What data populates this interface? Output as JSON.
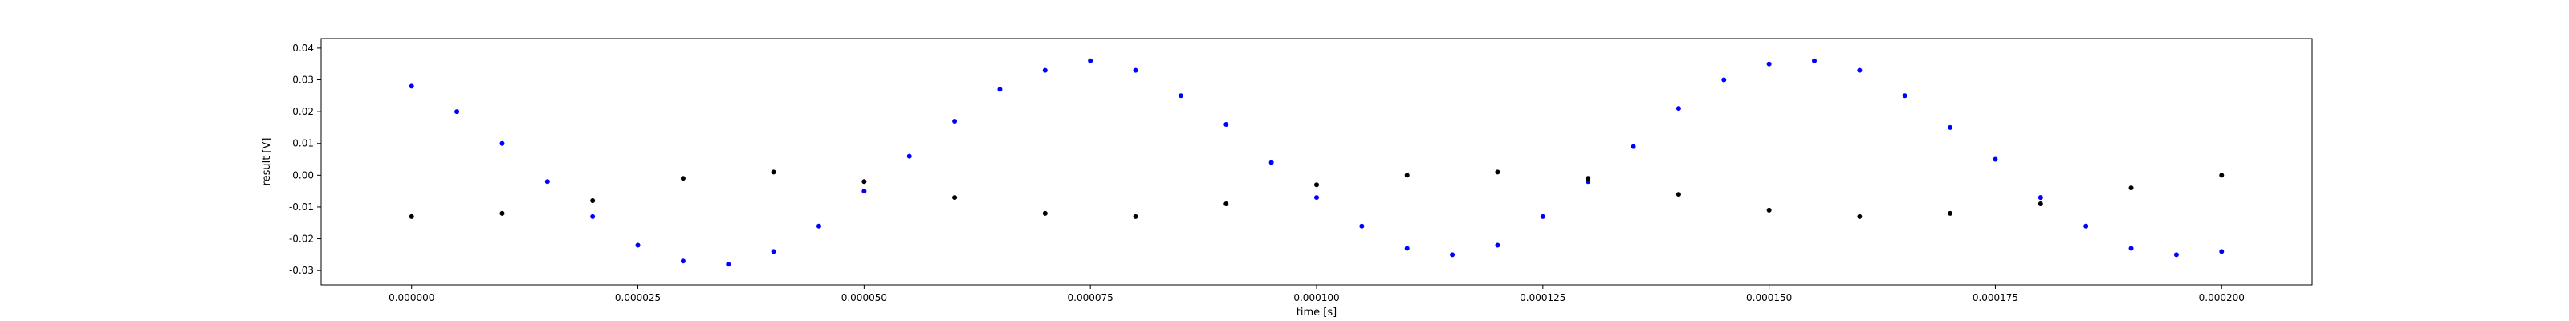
{
  "chart_data": {
    "type": "scatter",
    "title": "",
    "xlabel": "time [s]",
    "ylabel": "result [V]",
    "xlim": [
      -1e-05,
      0.00021
    ],
    "ylim": [
      -0.0345,
      0.043
    ],
    "xticks": [
      0.0,
      2.5e-05,
      5e-05,
      7.5e-05,
      0.0001,
      0.000125,
      0.00015,
      0.000175,
      0.0002
    ],
    "xtick_labels": [
      "0.000000",
      "0.000025",
      "0.000050",
      "0.000075",
      "0.000100",
      "0.000125",
      "0.000150",
      "0.000175",
      "0.000200"
    ],
    "yticks": [
      -0.03,
      -0.02,
      -0.01,
      0.0,
      0.01,
      0.02,
      0.03,
      0.04
    ],
    "ytick_labels": [
      "-0.03",
      "-0.02",
      "-0.01",
      "0.00",
      "0.01",
      "0.02",
      "0.03",
      "0.04"
    ],
    "grid": false,
    "colors": {
      "blue_series": "#0000ff",
      "black_series": "#000000"
    },
    "series": [
      {
        "color": "#0000ff",
        "x": [
          0.0,
          5e-06,
          1e-05,
          1.5e-05,
          2e-05,
          2.5e-05,
          3e-05,
          3.5e-05,
          4e-05,
          4.5e-05,
          5e-05,
          5.5e-05,
          6e-05,
          6.5e-05,
          7e-05,
          7.5e-05,
          8e-05,
          8.5e-05,
          9e-05,
          9.5e-05,
          0.0001,
          0.000105,
          0.00011,
          0.000115,
          0.00012,
          0.000125,
          0.00013,
          0.000135,
          0.00014,
          0.000145,
          0.00015,
          0.000155,
          0.00016,
          0.000165,
          0.00017,
          0.000175,
          0.00018,
          0.000185,
          0.00019,
          0.000195,
          0.0002
        ],
        "y": [
          0.028,
          0.02,
          0.01,
          -0.002,
          -0.013,
          -0.022,
          -0.027,
          -0.028,
          -0.024,
          -0.016,
          -0.005,
          0.006,
          0.017,
          0.027,
          0.033,
          0.036,
          0.033,
          0.025,
          0.016,
          0.004,
          -0.007,
          -0.016,
          -0.023,
          -0.025,
          -0.022,
          -0.013,
          -0.002,
          0.009,
          0.021,
          0.03,
          0.035,
          0.036,
          0.033,
          0.025,
          0.015,
          0.005,
          -0.007,
          -0.016,
          -0.023,
          -0.025,
          -0.024
        ]
      },
      {
        "color": "#000000",
        "x": [
          0.0,
          1e-05,
          2e-05,
          3e-05,
          4e-05,
          5e-05,
          6e-05,
          7e-05,
          8e-05,
          9e-05,
          0.0001,
          0.00011,
          0.00012,
          0.00013,
          0.00014,
          0.00015,
          0.00016,
          0.00017,
          0.00018,
          0.00019,
          0.0002
        ],
        "y": [
          -0.013,
          -0.012,
          -0.008,
          -0.001,
          0.001,
          -0.002,
          -0.007,
          -0.012,
          -0.013,
          -0.009,
          -0.003,
          0.0,
          0.001,
          -0.001,
          -0.006,
          -0.011,
          -0.013,
          -0.012,
          -0.009,
          -0.004,
          0.0
        ]
      }
    ]
  }
}
